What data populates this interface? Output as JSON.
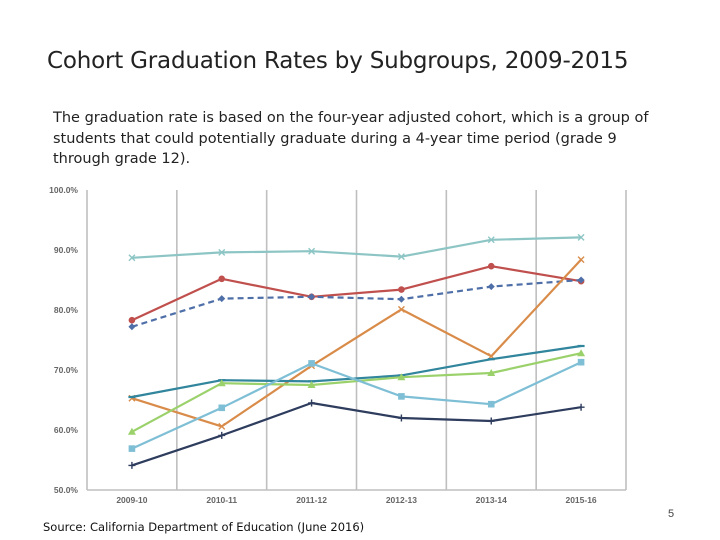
{
  "slide": {
    "title": "Cohort Graduation Rates by Subgroups, 2009-2015",
    "subtitle": "The graduation rate is based on the four-year adjusted cohort, which is a group of students that could potentially graduate during a 4-year time period (grade 9 through grade 12).",
    "source": "Source: California Department of Education (June 2016)",
    "page_number": "5"
  },
  "chart_data": {
    "type": "line",
    "categories": [
      "2009-10",
      "2010-11",
      "2011-12",
      "2012-13",
      "2013-14",
      "2015-16"
    ],
    "y_tick_labels": [
      "50.0%",
      "60.0%",
      "70.0%",
      "80.0%",
      "90.0%",
      "100.0%"
    ],
    "ylim": [
      50,
      100
    ],
    "grid": "vertical gridlines",
    "legend": "none",
    "series": [
      {
        "color": "#8DC5C5",
        "marker": "x",
        "dash": false,
        "values": [
          88.7,
          89.6,
          89.8,
          88.9,
          91.7,
          92.1
        ]
      },
      {
        "color": "#C0504D",
        "marker": "circle",
        "dash": false,
        "values": [
          78.3,
          85.2,
          82.2,
          83.4,
          87.3,
          84.8
        ]
      },
      {
        "color": "#4F6FA8",
        "marker": "diamond",
        "dash": true,
        "values": [
          77.2,
          81.9,
          82.2,
          81.8,
          83.9,
          85.0
        ]
      },
      {
        "color": "#D98C4A",
        "marker": "x",
        "dash": false,
        "values": [
          65.3,
          60.6,
          70.7,
          80.1,
          72.3,
          88.4
        ]
      },
      {
        "color": "#31859C",
        "marker": "line",
        "dash": false,
        "values": [
          65.5,
          68.3,
          68.1,
          69.1,
          71.8,
          74.0
        ]
      },
      {
        "color": "#9BD16B",
        "marker": "triangle",
        "dash": false,
        "values": [
          59.7,
          67.8,
          67.5,
          68.8,
          69.5,
          72.8
        ]
      },
      {
        "color": "#7FBFD6",
        "marker": "square",
        "dash": false,
        "values": [
          56.9,
          63.7,
          71.1,
          65.6,
          64.3,
          71.3
        ]
      },
      {
        "color": "#2E3C5E",
        "marker": "plus",
        "dash": false,
        "values": [
          54.1,
          59.1,
          64.5,
          62.0,
          61.5,
          63.8
        ]
      }
    ]
  }
}
